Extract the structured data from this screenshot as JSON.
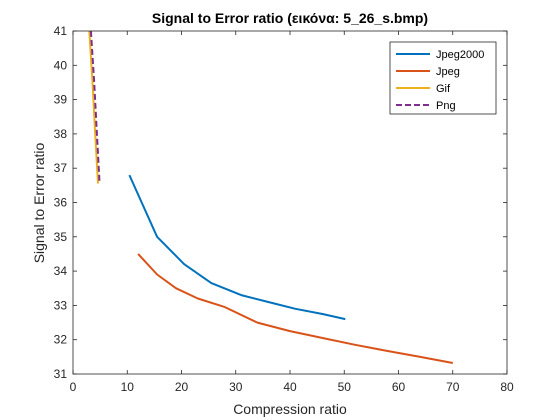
{
  "chart_data": {
    "type": "line",
    "title": "Signal to Error ratio (εικόνα: 5_26_s.bmp)",
    "xlabel": "Compression ratio",
    "ylabel": "Signal to Error ratio",
    "xlim": [
      0,
      80
    ],
    "ylim": [
      31,
      41
    ],
    "xticks": [
      0,
      10,
      20,
      30,
      40,
      50,
      60,
      70,
      80
    ],
    "yticks": [
      31,
      32,
      33,
      34,
      35,
      36,
      37,
      38,
      39,
      40,
      41
    ],
    "grid": false,
    "legend_position": "top-right",
    "series": [
      {
        "name": "Jpeg2000",
        "color": "#0072BD",
        "dashed": false,
        "x": [
          10.4,
          15.5,
          20.5,
          25.5,
          31.0,
          36.0,
          41.0,
          46.0,
          50.2
        ],
        "y": [
          36.8,
          35.0,
          34.2,
          33.65,
          33.3,
          33.1,
          32.9,
          32.75,
          32.6
        ]
      },
      {
        "name": "Jpeg",
        "color": "#D95319",
        "dashed": false,
        "x": [
          12.0,
          15.5,
          19.0,
          23.0,
          28.0,
          34.0,
          40.0,
          46.0,
          52.0,
          58.0,
          64.0,
          70.0
        ],
        "y": [
          34.5,
          33.9,
          33.5,
          33.2,
          32.95,
          32.5,
          32.25,
          32.05,
          31.85,
          31.67,
          31.5,
          31.32
        ]
      },
      {
        "name": "Gif",
        "color": "#EDB120",
        "dashed": false,
        "x": [
          3.0,
          3.6,
          4.1,
          4.6
        ],
        "y": [
          41.0,
          39.5,
          38.0,
          36.55
        ]
      },
      {
        "name": "Png",
        "color": "#7E2F8E",
        "dashed": true,
        "x": [
          3.3,
          3.9,
          4.4,
          4.9
        ],
        "y": [
          41.0,
          39.5,
          38.0,
          36.55
        ]
      }
    ]
  }
}
